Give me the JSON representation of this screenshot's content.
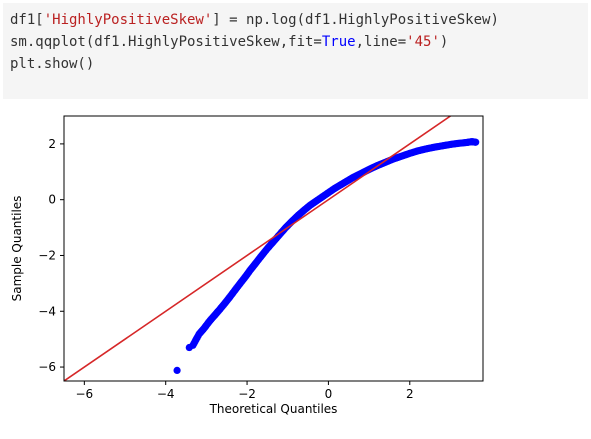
{
  "code": {
    "line1": {
      "a": "df1[",
      "b": "'HighlyPositiveSkew'",
      "c": "] = np.log(df1.HighlyPositiveSkew)"
    },
    "line2": {
      "a": "sm.qqplot(df1.HighlyPositiveSkew,fit=",
      "b": "True",
      "c": ",line=",
      "d": "'45'",
      "e": ")"
    },
    "line3": "plt.show()"
  },
  "chart_data": {
    "type": "scatter",
    "xlabel": "Theoretical Quantiles",
    "ylabel": "Sample Quantiles",
    "xlim": [
      -6.5,
      3.8
    ],
    "ylim": [
      -6.5,
      3.0
    ],
    "xticks": [
      -6,
      -4,
      -2,
      0,
      2
    ],
    "yticks": [
      -6,
      -4,
      -2,
      0,
      2
    ],
    "grid": false,
    "reference_line": {
      "type": "45-degree",
      "color": "#d62728"
    },
    "marker_color": "#0000ff",
    "points": [
      [
        -3.72,
        -6.12
      ],
      [
        -3.42,
        -5.3
      ],
      [
        -3.33,
        -5.22
      ],
      [
        -3.18,
        -4.82
      ],
      [
        -3.05,
        -4.6
      ],
      [
        -2.92,
        -4.35
      ],
      [
        -2.8,
        -4.15
      ],
      [
        -2.68,
        -3.95
      ],
      [
        -2.55,
        -3.72
      ],
      [
        -2.43,
        -3.5
      ],
      [
        -2.3,
        -3.25
      ],
      [
        -2.18,
        -3.02
      ],
      [
        -2.05,
        -2.78
      ],
      [
        -1.92,
        -2.52
      ],
      [
        -1.8,
        -2.3
      ],
      [
        -1.65,
        -2.02
      ],
      [
        -1.5,
        -1.75
      ],
      [
        -1.35,
        -1.5
      ],
      [
        -1.2,
        -1.25
      ],
      [
        -1.05,
        -1.0
      ],
      [
        -0.9,
        -0.78
      ],
      [
        -0.75,
        -0.57
      ],
      [
        -0.6,
        -0.38
      ],
      [
        -0.45,
        -0.2
      ],
      [
        -0.3,
        -0.05
      ],
      [
        -0.15,
        0.1
      ],
      [
        0.0,
        0.25
      ],
      [
        0.15,
        0.4
      ],
      [
        0.3,
        0.53
      ],
      [
        0.45,
        0.66
      ],
      [
        0.6,
        0.79
      ],
      [
        0.75,
        0.9
      ],
      [
        0.9,
        1.01
      ],
      [
        1.05,
        1.12
      ],
      [
        1.2,
        1.22
      ],
      [
        1.4,
        1.34
      ],
      [
        1.6,
        1.46
      ],
      [
        1.8,
        1.56
      ],
      [
        2.0,
        1.66
      ],
      [
        2.2,
        1.75
      ],
      [
        2.4,
        1.82
      ],
      [
        2.6,
        1.88
      ],
      [
        2.8,
        1.93
      ],
      [
        3.0,
        1.98
      ],
      [
        3.2,
        2.02
      ],
      [
        3.4,
        2.05
      ],
      [
        3.52,
        2.08
      ],
      [
        3.62,
        2.06
      ]
    ]
  }
}
